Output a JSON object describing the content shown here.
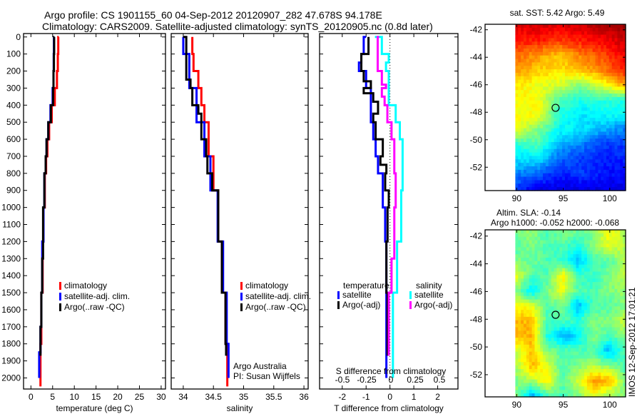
{
  "title_line1": "Argo profile: CS 1901155_60 04-Sep-2012 20120907_282 47.678S 94.178E",
  "title_line2": "Climatology: CARS2009. Satellite-adjusted climatology: synTS_20120905.nc (0.8d later)",
  "footer_stamp": "IMOS 12-Sep-2012 17:01:21",
  "colors": {
    "climatology": "#ff0000",
    "satellite": "#0000ff",
    "argo": "#000000",
    "sal_satellite": "#00ffff",
    "sal_argo": "#ff00ff"
  },
  "chart_data": [
    {
      "type": "line",
      "id": "temperature",
      "xlabel": "temperature (deg C)",
      "ylabel": "",
      "xlim": [
        -1.7,
        31
      ],
      "ylim": [
        2065,
        -20
      ],
      "xticks": [
        "0",
        "5",
        "10",
        "15",
        "20",
        "25",
        "30"
      ],
      "yticks": [
        "0",
        "100",
        "200",
        "300",
        "400",
        "500",
        "600",
        "700",
        "800",
        "900",
        "1000",
        "1100",
        "1200",
        "1300",
        "1400",
        "1500",
        "1600",
        "1700",
        "1800",
        "1900",
        "2000"
      ],
      "legend": [
        "climatology",
        "satellite-adj. clim.",
        "Argo(..raw -QC)"
      ],
      "series": [
        {
          "name": "climatology",
          "color": "#ff0000",
          "depth": [
            0,
            100,
            200,
            300,
            400,
            500,
            600,
            700,
            800,
            1000,
            1200,
            1500,
            1800,
            2000,
            2050
          ],
          "values": [
            6.4,
            6.3,
            6.2,
            6.0,
            5.5,
            4.8,
            4.2,
            3.8,
            3.5,
            3.2,
            2.9,
            2.7,
            2.4,
            2.2,
            2.2
          ]
        },
        {
          "name": "satellite-adj. clim.",
          "color": "#0000ff",
          "depth": [
            0,
            100,
            200,
            300,
            400,
            500,
            600,
            700,
            800,
            1000,
            1200,
            1500,
            1700,
            1850,
            1900,
            2000
          ],
          "values": [
            5.3,
            5.3,
            5.25,
            5.2,
            5.0,
            4.5,
            4.0,
            3.6,
            3.4,
            3.1,
            2.9,
            2.6,
            2.4,
            2.2,
            1.9,
            1.9
          ]
        },
        {
          "name": "Argo(..raw -QC)",
          "color": "#000000",
          "depth": [
            0,
            100,
            200,
            300,
            400,
            500,
            600,
            700,
            800,
            1000,
            1300,
            1500,
            1700,
            1870
          ],
          "values": [
            5.4,
            5.35,
            5.3,
            5.2,
            5.1,
            4.6,
            4.0,
            3.6,
            3.4,
            3.1,
            2.8,
            2.6,
            2.4,
            2.2
          ]
        }
      ]
    },
    {
      "type": "line",
      "id": "salinity",
      "xlabel": "salinity",
      "xlim": [
        33.8,
        36.07
      ],
      "ylim": [
        2065,
        -20
      ],
      "xticks": [
        "34",
        "34.5",
        "35",
        "35.5",
        "36"
      ],
      "legend": [
        "climatology",
        "satellite-adj. clim.",
        "Argo(..raw -QC)"
      ],
      "annotation": [
        "Argo Australia",
        "PI: Susan Wijffels"
      ],
      "series": [
        {
          "name": "climatology",
          "color": "#ff0000",
          "depth": [
            0,
            100,
            200,
            300,
            400,
            500,
            700,
            900,
            1200,
            1500,
            1800,
            2000,
            2050
          ],
          "values": [
            34.15,
            34.15,
            34.17,
            34.25,
            34.3,
            34.35,
            34.42,
            34.5,
            34.58,
            34.64,
            34.7,
            34.73,
            34.73
          ]
        },
        {
          "name": "satellite-adj. clim.",
          "color": "#0000ff",
          "depth": [
            0,
            100,
            300,
            500,
            700,
            900,
            1200,
            1500,
            1800,
            2000
          ],
          "values": [
            34.0,
            34.0,
            34.1,
            34.22,
            34.35,
            34.45,
            34.57,
            34.66,
            34.72,
            34.75
          ]
        },
        {
          "name": "Argo(..raw -QC)",
          "color": "#000000",
          "depth": [
            0,
            150,
            250,
            300,
            400,
            450,
            500,
            600,
            700,
            800,
            900,
            1200,
            1500,
            1800,
            1870
          ],
          "values": [
            34.0,
            34.05,
            34.05,
            34.12,
            34.15,
            34.25,
            34.3,
            34.3,
            34.38,
            34.4,
            34.48,
            34.58,
            34.64,
            34.7,
            34.71
          ]
        }
      ]
    },
    {
      "type": "line",
      "id": "difference",
      "xlabel": "T difference from climatology",
      "xlabel2": "S difference from climatology",
      "xlim": [
        -2.95,
        2.85
      ],
      "xlim2": [
        -0.5,
        0.5
      ],
      "ylim": [
        2065,
        -20
      ],
      "xticks": [
        "-2",
        "-1",
        "0",
        "1",
        "2"
      ],
      "xticks2": [
        "-0.5",
        "-0.25",
        "0",
        "0.25",
        "0.5"
      ],
      "legend_headers": [
        "temperature",
        "salinity"
      ],
      "legend": [
        "satellite",
        "Argo(-adj)",
        "satellite",
        "Argo(-adj)"
      ],
      "series": [
        {
          "name": "T satellite",
          "axis": "T",
          "color": "#0000ff",
          "depth": [
            0,
            50,
            100,
            150,
            200,
            250,
            300,
            400,
            500,
            600,
            700,
            800,
            1000,
            1200,
            1500,
            2000
          ],
          "values": [
            -1.0,
            -1.1,
            -1.1,
            -1.2,
            -1.3,
            -1.0,
            -1.0,
            -0.8,
            -0.8,
            -0.7,
            -0.6,
            -0.5,
            -0.3,
            -0.2,
            -0.15,
            -0.15
          ]
        },
        {
          "name": "T Argo(-adj)",
          "axis": "T",
          "color": "#000000",
          "depth": [
            0,
            100,
            200,
            260,
            300,
            330,
            380,
            450,
            500,
            600,
            700,
            750,
            800,
            900,
            1000,
            1200,
            1500,
            1870
          ],
          "values": [
            -0.9,
            -0.9,
            -1.2,
            -1.1,
            -0.8,
            -1.1,
            -0.7,
            -0.5,
            -0.7,
            -0.6,
            -0.3,
            -0.4,
            -0.15,
            -0.2,
            -0.05,
            -0.1,
            -0.15,
            -0.1
          ]
        },
        {
          "name": "S satellite",
          "axis": "S",
          "color": "#00ffff",
          "depth": [
            0,
            100,
            150,
            200,
            300,
            400,
            500,
            600,
            700,
            900,
            1200,
            1500,
            2000
          ],
          "values": [
            -0.1,
            -0.05,
            0.0,
            -0.02,
            0.0,
            0.0,
            0.05,
            0.08,
            0.1,
            0.1,
            0.09,
            0.06,
            0.03
          ]
        },
        {
          "name": "S Argo(-adj)",
          "axis": "S",
          "color": "#ff00ff",
          "depth": [
            0,
            200,
            280,
            300,
            350,
            400,
            500,
            600,
            800,
            1000,
            1300,
            1500,
            1870
          ],
          "values": [
            -0.07,
            -0.08,
            -0.05,
            -0.02,
            -0.05,
            -0.03,
            -0.01,
            0.02,
            0.04,
            0.05,
            0.04,
            0.02,
            0.0
          ]
        }
      ]
    },
    {
      "type": "heatmap",
      "id": "sst-map",
      "title": "sat. SST: 5.42 Argo: 5.49",
      "xlim": [
        86.6,
        101.7
      ],
      "ylim": [
        -53.7,
        -41.6
      ],
      "data_lon_range": [
        89.85,
        101.7
      ],
      "xticks": [
        "90",
        "95",
        "100"
      ],
      "yticks": [
        "-42",
        "-44",
        "-46",
        "-48",
        "-50",
        "-52"
      ],
      "argo_position": {
        "lon": 94.178,
        "lat": -47.678
      },
      "colormap": "jet",
      "grid_normalized": [
        [
          0.9,
          0.92,
          0.9,
          0.92,
          0.95,
          0.98
        ],
        [
          0.85,
          0.85,
          0.82,
          0.85,
          0.88,
          0.92
        ],
        [
          0.78,
          0.72,
          0.68,
          0.75,
          0.8,
          0.88
        ],
        [
          0.72,
          0.68,
          0.65,
          0.68,
          0.75,
          0.85
        ],
        [
          0.65,
          0.6,
          0.58,
          0.5,
          0.6,
          0.7
        ],
        [
          0.62,
          0.62,
          0.45,
          0.4,
          0.42,
          0.4
        ],
        [
          0.62,
          0.62,
          0.4,
          0.35,
          0.38,
          0.38
        ],
        [
          0.6,
          0.5,
          0.38,
          0.35,
          0.3,
          0.25
        ],
        [
          0.42,
          0.45,
          0.3,
          0.25,
          0.18,
          0.18
        ],
        [
          0.35,
          0.35,
          0.22,
          0.18,
          0.15,
          0.15
        ],
        [
          0.25,
          0.22,
          0.15,
          0.18,
          0.15,
          0.12
        ],
        [
          0.18,
          0.1,
          0.1,
          0.1,
          0.1,
          0.1
        ]
      ]
    },
    {
      "type": "heatmap",
      "id": "sla-map",
      "title": "Altim. SLA: -0.14",
      "subtitle": "Argo h1000: -0.052 h2000: -0.068",
      "xlim": [
        86.6,
        101.7
      ],
      "ylim": [
        -53.6,
        -41.55
      ],
      "data_lon_range": [
        89.85,
        101.7
      ],
      "xticks": [
        "90",
        "95",
        "100"
      ],
      "yticks": [
        "-42",
        "-44",
        "-46",
        "-48",
        "-50",
        "-52"
      ],
      "argo_position": {
        "lon": 94.178,
        "lat": -47.678
      },
      "colormap": "jet",
      "grid_normalized": [
        [
          0.5,
          0.52,
          0.45,
          0.5,
          0.48,
          0.5,
          0.62,
          0.55
        ],
        [
          0.45,
          0.5,
          0.45,
          0.45,
          0.4,
          0.5,
          0.6,
          0.55
        ],
        [
          0.5,
          0.48,
          0.45,
          0.42,
          0.3,
          0.45,
          0.45,
          0.55
        ],
        [
          0.6,
          0.45,
          0.45,
          0.65,
          0.45,
          0.42,
          0.5,
          0.55
        ],
        [
          0.5,
          0.35,
          0.5,
          0.6,
          0.45,
          0.45,
          0.5,
          0.52
        ],
        [
          0.62,
          0.6,
          0.45,
          0.5,
          0.3,
          0.45,
          0.45,
          0.5
        ],
        [
          0.7,
          0.68,
          0.45,
          0.45,
          0.42,
          0.5,
          0.5,
          0.58
        ],
        [
          0.7,
          0.7,
          0.4,
          0.3,
          0.35,
          0.5,
          0.45,
          0.5
        ],
        [
          0.58,
          0.68,
          0.5,
          0.45,
          0.45,
          0.45,
          0.3,
          0.45
        ],
        [
          0.55,
          0.7,
          0.6,
          0.45,
          0.5,
          0.55,
          0.5,
          0.45
        ],
        [
          0.5,
          0.55,
          0.65,
          0.45,
          0.58,
          0.72,
          0.7,
          0.5
        ],
        [
          0.5,
          0.3,
          0.45,
          0.45,
          0.5,
          0.62,
          0.55,
          0.5
        ]
      ]
    }
  ]
}
